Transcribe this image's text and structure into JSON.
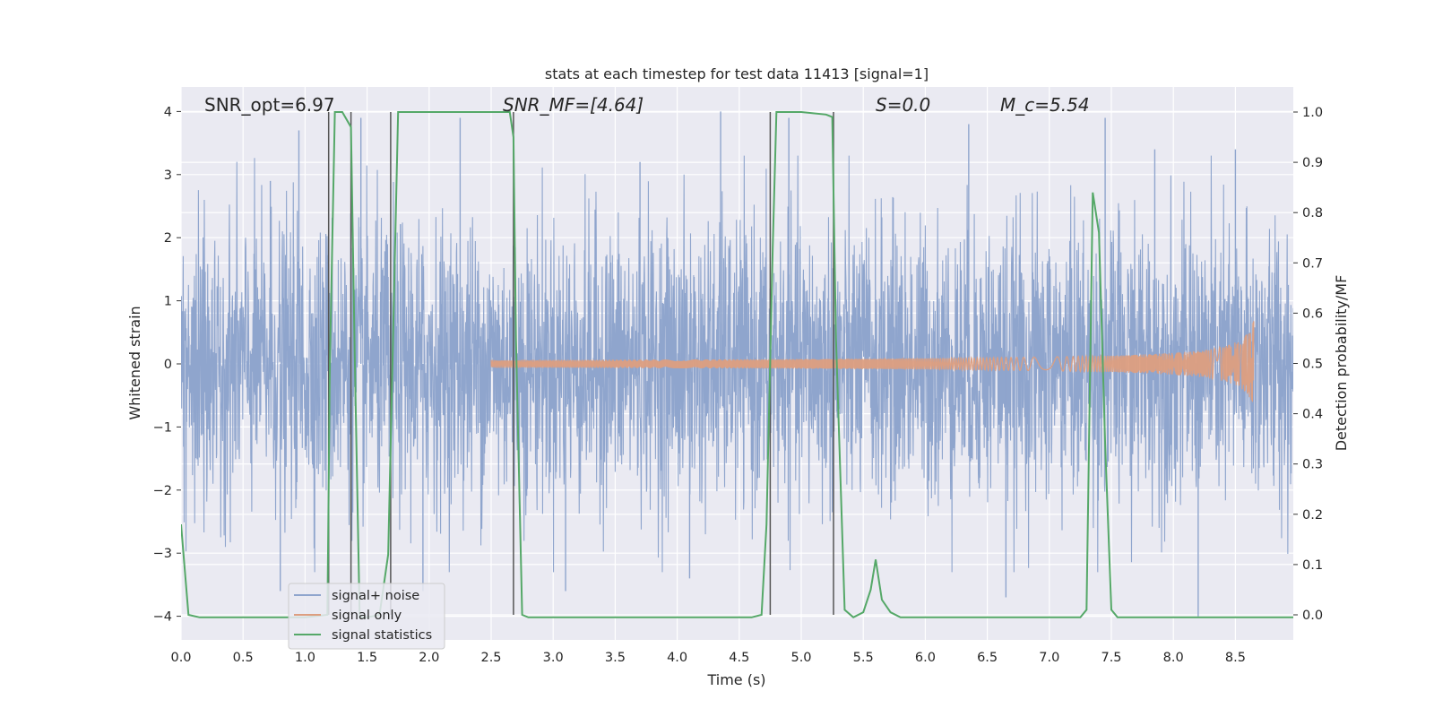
{
  "chart_data": {
    "type": "line",
    "title": "stats at each timestep for test data 11413 [signal=1]",
    "xlabel": "Time (s)",
    "ylabel": "Whitened strain",
    "y2label": "Detection probability/MF",
    "xlim": [
      0.0,
      9.0
    ],
    "ylim": [
      -4.4,
      4.4
    ],
    "y2lim": [
      -0.05,
      1.05
    ],
    "xticks": [
      "0.0",
      "0.5",
      "1.0",
      "1.5",
      "2.0",
      "2.5",
      "3.0",
      "3.5",
      "4.0",
      "4.5",
      "5.0",
      "5.5",
      "6.0",
      "6.5",
      "7.0",
      "7.5",
      "8.0",
      "8.5"
    ],
    "yticks": [
      "4",
      "3",
      "2",
      "1",
      "0",
      "−1",
      "−2",
      "−3",
      "−4"
    ],
    "y2ticks": [
      "1.0",
      "0.9",
      "0.8",
      "0.7",
      "0.6",
      "0.5",
      "0.4",
      "0.3",
      "0.2",
      "0.1",
      "0.0"
    ],
    "grid": true,
    "legend_position": "lower-left",
    "annotations": [
      {
        "id": "snr-opt",
        "text": "SNR_opt=6.97",
        "x": 0.2
      },
      {
        "id": "snr-mf",
        "text": "SNR_MF=[4.64]",
        "x": 2.6
      },
      {
        "id": "s-val",
        "text": "S=0.0",
        "x": 5.6
      },
      {
        "id": "mc-val",
        "text": "M_c=5.54",
        "x": 6.6
      }
    ],
    "series": [
      {
        "name": "signal+ noise",
        "color": "#8fa5cd",
        "description": "whitened noisy strain, amplitude roughly within ±3.5",
        "envelope_sigma": 1.1,
        "extreme_spikes": [
          {
            "x": 0.95,
            "y": 3.7
          },
          {
            "x": 0.72,
            "y": 2.9
          },
          {
            "x": 1.45,
            "y": 3.9
          },
          {
            "x": 2.25,
            "y": 3.9
          },
          {
            "x": 3.7,
            "y": 3.2
          },
          {
            "x": 4.35,
            "y": 4.0
          },
          {
            "x": 4.9,
            "y": 3.9
          },
          {
            "x": 6.35,
            "y": 3.8
          },
          {
            "x": 7.45,
            "y": 3.9
          },
          {
            "x": 7.85,
            "y": 3.4
          },
          {
            "x": 8.5,
            "y": 3.4
          },
          {
            "x": 1.95,
            "y": -3.6
          },
          {
            "x": 3.1,
            "y": -3.6
          },
          {
            "x": 4.1,
            "y": -3.4
          },
          {
            "x": 6.65,
            "y": -3.7
          },
          {
            "x": 8.2,
            "y": -4.0
          },
          {
            "x": 0.8,
            "y": -3.6
          }
        ]
      },
      {
        "name": "signal only",
        "color": "#dd9e80",
        "description": "chirp signal growing in amplitude until merger",
        "chirp": {
          "start": 2.5,
          "end": 8.65,
          "amp_start": 0.02,
          "amp_end": 0.7
        }
      },
      {
        "name": "signal statistics",
        "color": "#55a868",
        "axis": "right",
        "points": [
          [
            0.0,
            0.18
          ],
          [
            0.06,
            0.0
          ],
          [
            0.15,
            -0.005
          ],
          [
            0.3,
            -0.005
          ],
          [
            1.0,
            -0.005
          ],
          [
            1.18,
            0.0
          ],
          [
            1.2,
            0.5
          ],
          [
            1.24,
            1.0
          ],
          [
            1.3,
            1.0
          ],
          [
            1.37,
            0.97
          ],
          [
            1.4,
            0.52
          ],
          [
            1.44,
            -0.005
          ],
          [
            1.5,
            -0.005
          ],
          [
            1.6,
            0.0
          ],
          [
            1.67,
            0.12
          ],
          [
            1.75,
            1.0
          ],
          [
            2.0,
            1.0
          ],
          [
            2.65,
            1.0
          ],
          [
            2.68,
            0.95
          ],
          [
            2.7,
            0.55
          ],
          [
            2.75,
            0.0
          ],
          [
            2.8,
            -0.005
          ],
          [
            3.5,
            -0.005
          ],
          [
            4.6,
            -0.005
          ],
          [
            4.68,
            0.0
          ],
          [
            4.72,
            0.18
          ],
          [
            4.77,
            0.73
          ],
          [
            4.8,
            1.0
          ],
          [
            5.0,
            1.0
          ],
          [
            5.2,
            0.995
          ],
          [
            5.25,
            0.99
          ],
          [
            5.28,
            0.55
          ],
          [
            5.35,
            0.01
          ],
          [
            5.42,
            -0.005
          ],
          [
            5.5,
            0.005
          ],
          [
            5.56,
            0.05
          ],
          [
            5.6,
            0.11
          ],
          [
            5.65,
            0.03
          ],
          [
            5.72,
            0.005
          ],
          [
            5.8,
            -0.005
          ],
          [
            6.5,
            -0.005
          ],
          [
            7.25,
            -0.005
          ],
          [
            7.3,
            0.01
          ],
          [
            7.35,
            0.84
          ],
          [
            7.4,
            0.76
          ],
          [
            7.45,
            0.34
          ],
          [
            7.5,
            0.01
          ],
          [
            7.55,
            -0.005
          ],
          [
            8.5,
            -0.005
          ],
          [
            9.0,
            -0.005
          ]
        ]
      }
    ],
    "vertical_lines": [
      1.19,
      1.37,
      1.69,
      2.68,
      4.75,
      5.26
    ]
  }
}
